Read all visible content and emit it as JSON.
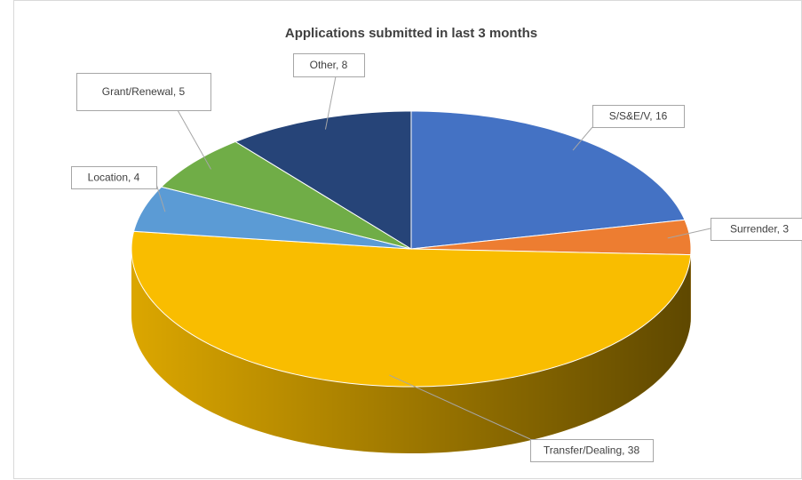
{
  "chart_data": {
    "type": "pie",
    "title": "Applications submitted in last 3 months",
    "values": [
      16,
      3,
      38,
      4,
      5,
      8
    ],
    "value_labels": [
      "S/S&E/V, 16",
      "Surrender, 3",
      "Transfer/Dealing, 38",
      "Location, 4",
      "Grant/Renewal, 5",
      "Other, 8"
    ],
    "colors": [
      "#4472c4",
      "#ed7d31",
      "#f9bd00",
      "#5b9bd5",
      "#70ad47",
      "#264478"
    ]
  }
}
